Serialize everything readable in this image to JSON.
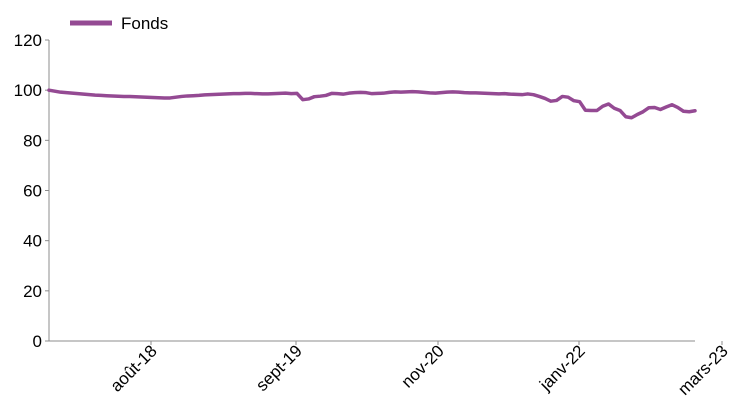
{
  "chart_data": {
    "type": "line",
    "title": "",
    "xlabel": "",
    "ylabel": "",
    "ylim": [
      0,
      120
    ],
    "yticks": [
      0,
      20,
      40,
      60,
      80,
      100,
      120
    ],
    "x_tick_labels": [
      "août-18",
      "sept-19",
      "nov-20",
      "janv-22",
      "mars-23"
    ],
    "grid": false,
    "legend_position": "top-left",
    "series": [
      {
        "name": "Fonds",
        "color": "#944a93",
        "values": [
          100,
          99.6,
          99.2,
          99.0,
          98.8,
          98.6,
          98.4,
          98.2,
          98.0,
          97.9,
          97.8,
          97.7,
          97.6,
          97.5,
          97.5,
          97.4,
          97.3,
          97.2,
          97.1,
          97.0,
          96.9,
          96.9,
          97.2,
          97.5,
          97.7,
          97.8,
          97.9,
          98.1,
          98.2,
          98.3,
          98.4,
          98.5,
          98.6,
          98.6,
          98.7,
          98.7,
          98.6,
          98.5,
          98.5,
          98.6,
          98.7,
          98.8,
          98.6,
          98.7,
          96.2,
          96.5,
          97.4,
          97.6,
          97.9,
          98.7,
          98.6,
          98.4,
          98.8,
          99.0,
          99.1,
          99.0,
          98.6,
          98.7,
          98.8,
          99.1,
          99.3,
          99.2,
          99.3,
          99.4,
          99.3,
          99.1,
          98.9,
          98.8,
          99.0,
          99.2,
          99.3,
          99.2,
          99.0,
          98.9,
          98.9,
          98.8,
          98.7,
          98.6,
          98.5,
          98.6,
          98.4,
          98.3,
          98.2,
          98.5,
          98.2,
          97.5,
          96.7,
          95.6,
          95.9,
          97.5,
          97.2,
          95.8,
          95.4,
          92.0,
          91.9,
          91.9,
          93.6,
          94.5,
          92.8,
          91.9,
          89.4,
          89.0,
          90.3,
          91.4,
          93.0,
          93.1,
          92.3,
          93.3,
          94.2,
          93.1,
          91.6,
          91.4,
          91.8
        ]
      }
    ]
  }
}
